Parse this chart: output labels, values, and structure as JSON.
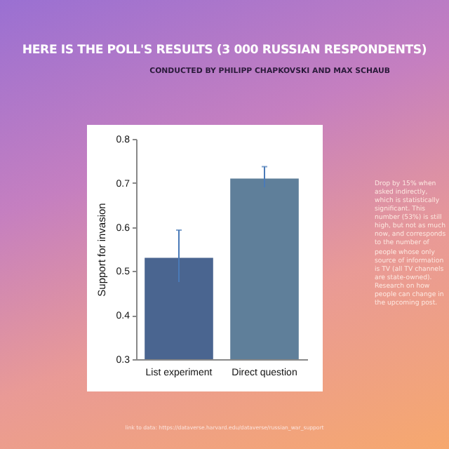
{
  "chart_data": {
    "type": "bar",
    "title": "HERE IS THE POLL'S RESULTS  (3 000 RUSSIAN RESPONDENTS)",
    "subtitle": "CONDUCTED BY PHILIPP CHAPKOVSKI AND MAX SCHAUB",
    "ylabel": "Support for invasion",
    "categories": [
      "List experiment",
      "Direct question"
    ],
    "values": [
      0.53,
      0.71
    ],
    "colors": [
      "#4a6590",
      "#5f7f9a"
    ],
    "errors": [
      [
        0.475,
        0.593
      ],
      [
        0.69,
        0.737
      ]
    ],
    "ylim": [
      0.3,
      0.8
    ],
    "yticks": [
      0.3,
      0.4,
      0.5,
      0.6,
      0.7,
      0.8
    ],
    "grid": false,
    "annotations": [
      "Drop by 15% when asked indirectly, which is statistically significant. This number (53%) is still high, but not as much now, and corresponds to the number of people whose only source of information is TV (all TV channels are state-owned). Research on how people can change in the upcoming post.",
      "link to data: https://dataverse.harvard.edu/dataverse/russian_war_support"
    ]
  }
}
